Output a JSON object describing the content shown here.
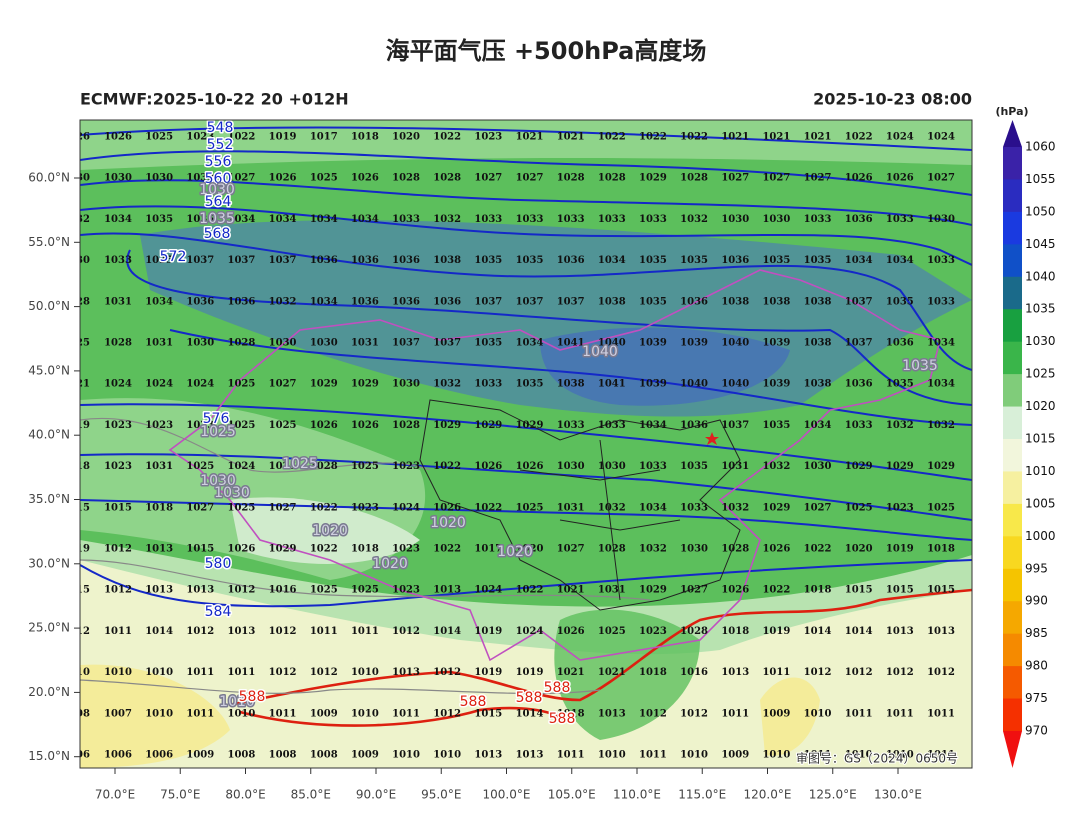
{
  "title": "海平面气压 +500hPa高度场",
  "left_header": "ECMWF:2025-10-22 20 +012H",
  "right_header": "2025-10-23 08:00",
  "watermark": "审图号：GS（2024）0650号",
  "lat_labels": [
    "60.0°N",
    "55.0°N",
    "50.0°N",
    "45.0°N",
    "40.0°N",
    "35.0°N",
    "30.0°N",
    "25.0°N",
    "20.0°N",
    "15.0°N"
  ],
  "lon_labels": [
    "70.0°E",
    "75.0°E",
    "80.0°E",
    "85.0°E",
    "90.0°E",
    "95.0°E",
    "100.0°E",
    "105.0°E",
    "110.0°E",
    "115.0°E",
    "120.0°E",
    "125.0°E",
    "130.0°E"
  ],
  "colorbar": {
    "unit": "(hPa)",
    "ticks": [
      "1060",
      "1055",
      "1050",
      "1045",
      "1040",
      "1035",
      "1030",
      "1025",
      "1020",
      "1015",
      "1010",
      "1005",
      "1000",
      "995",
      "990",
      "985",
      "980",
      "975",
      "970"
    ],
    "colors": [
      "#2a0f8c",
      "#3a22a8",
      "#2a2cc0",
      "#1a3ae0",
      "#1050c8",
      "#1a6a8a",
      "#18a040",
      "#3ab54a",
      "#80cc7a",
      "#d8efd8",
      "#f2f6dc",
      "#f6f0a0",
      "#f8e84a",
      "#f8d820",
      "#f5c400",
      "#f5a800",
      "#f58a00",
      "#f55a00",
      "#f53000",
      "#f01010"
    ]
  },
  "stations": [
    [
      "26",
      "1026",
      "1025",
      "1023",
      "1022",
      "1019",
      "1017",
      "1018",
      "1020",
      "1022",
      "1023",
      "1021",
      "1021",
      "1022",
      "1022",
      "1022",
      "1021",
      "1021",
      "1021",
      "1022",
      "1024",
      "1024"
    ],
    [
      "30",
      "1030",
      "1030",
      "1030",
      "1027",
      "1026",
      "1025",
      "1026",
      "1028",
      "1028",
      "1027",
      "1027",
      "1028",
      "1028",
      "1029",
      "1028",
      "1027",
      "1027",
      "1027",
      "1026",
      "1026",
      "1027"
    ],
    [
      "32",
      "1034",
      "1035",
      "1035",
      "1034",
      "1034",
      "1034",
      "1034",
      "1033",
      "1032",
      "1033",
      "1033",
      "1033",
      "1033",
      "1033",
      "1032",
      "1030",
      "1030",
      "1033",
      "1036",
      "1033",
      "1030"
    ],
    [
      "30",
      "1033",
      "1035",
      "1037",
      "1037",
      "1037",
      "1036",
      "1036",
      "1036",
      "1038",
      "1035",
      "1035",
      "1036",
      "1034",
      "1035",
      "1035",
      "1036",
      "1035",
      "1035",
      "1034",
      "1034",
      "1033"
    ],
    [
      "28",
      "1031",
      "1034",
      "1036",
      "1036",
      "1032",
      "1034",
      "1036",
      "1036",
      "1036",
      "1037",
      "1037",
      "1037",
      "1038",
      "1035",
      "1036",
      "1038",
      "1038",
      "1038",
      "1037",
      "1035",
      "1033"
    ],
    [
      "25",
      "1028",
      "1031",
      "1030",
      "1028",
      "1030",
      "1030",
      "1031",
      "1037",
      "1037",
      "1035",
      "1034",
      "1041",
      "1040",
      "1039",
      "1039",
      "1040",
      "1039",
      "1038",
      "1037",
      "1036",
      "1034"
    ],
    [
      "21",
      "1024",
      "1024",
      "1024",
      "1025",
      "1027",
      "1029",
      "1029",
      "1030",
      "1032",
      "1033",
      "1035",
      "1038",
      "1041",
      "1039",
      "1040",
      "1040",
      "1039",
      "1038",
      "1036",
      "1035",
      "1034"
    ],
    [
      "19",
      "1023",
      "1023",
      "1023",
      "1025",
      "1025",
      "1026",
      "1026",
      "1028",
      "1029",
      "1029",
      "1029",
      "1033",
      "1033",
      "1034",
      "1036",
      "1037",
      "1035",
      "1034",
      "1033",
      "1032",
      "1032"
    ],
    [
      "18",
      "1023",
      "1031",
      "1025",
      "1024",
      "1025",
      "1028",
      "1025",
      "1023",
      "1022",
      "1026",
      "1026",
      "1030",
      "1030",
      "1033",
      "1035",
      "1031",
      "1032",
      "1030",
      "1029",
      "1029",
      "1029"
    ],
    [
      "15",
      "1015",
      "1018",
      "1027",
      "1025",
      "1027",
      "1022",
      "1023",
      "1024",
      "1026",
      "1022",
      "1025",
      "1031",
      "1032",
      "1034",
      "1033",
      "1032",
      "1029",
      "1027",
      "1025",
      "1023",
      "1025"
    ],
    [
      "19",
      "1012",
      "1013",
      "1015",
      "1026",
      "1029",
      "1022",
      "1018",
      "1023",
      "1022",
      "1017",
      "1020",
      "1027",
      "1028",
      "1032",
      "1030",
      "1028",
      "1026",
      "1022",
      "1020",
      "1019",
      "1018"
    ],
    [
      "15",
      "1012",
      "1013",
      "1013",
      "1012",
      "1016",
      "1025",
      "1025",
      "1023",
      "1013",
      "1024",
      "1022",
      "1021",
      "1031",
      "1029",
      "1027",
      "1026",
      "1022",
      "1018",
      "1015",
      "1015",
      "1015"
    ],
    [
      "12",
      "1011",
      "1014",
      "1012",
      "1013",
      "1012",
      "1011",
      "1011",
      "1012",
      "1014",
      "1019",
      "1024",
      "1026",
      "1025",
      "1023",
      "1028",
      "1018",
      "1019",
      "1014",
      "1014",
      "1013",
      "1013"
    ],
    [
      "10",
      "1010",
      "1010",
      "1011",
      "1011",
      "1012",
      "1012",
      "1010",
      "1013",
      "1012",
      "1019",
      "1019",
      "1021",
      "1021",
      "1018",
      "1016",
      "1013",
      "1011",
      "1012",
      "1012",
      "1012",
      "1012"
    ],
    [
      "08",
      "1007",
      "1010",
      "1011",
      "1010",
      "1011",
      "1009",
      "1010",
      "1011",
      "1012",
      "1015",
      "1014",
      "1018",
      "1013",
      "1012",
      "1012",
      "1011",
      "1009",
      "1010",
      "1011",
      "1011",
      "1011"
    ],
    [
      "06",
      "1006",
      "1006",
      "1009",
      "1008",
      "1008",
      "1008",
      "1009",
      "1010",
      "1010",
      "1013",
      "1013",
      "1011",
      "1010",
      "1011",
      "1010",
      "1009",
      "1010",
      "1011",
      "1010",
      "1010",
      "1011"
    ]
  ],
  "contour_labels": [
    "548",
    "552",
    "556",
    "560",
    "1030",
    "564",
    "1035",
    "568",
    "572",
    "1040",
    "1035",
    "576",
    "1025",
    "1025",
    "1030",
    "1030",
    "1020",
    "1020",
    "1020",
    "1020",
    "580",
    "584",
    "1010",
    "588",
    "588",
    "588",
    "588",
    "588"
  ]
}
